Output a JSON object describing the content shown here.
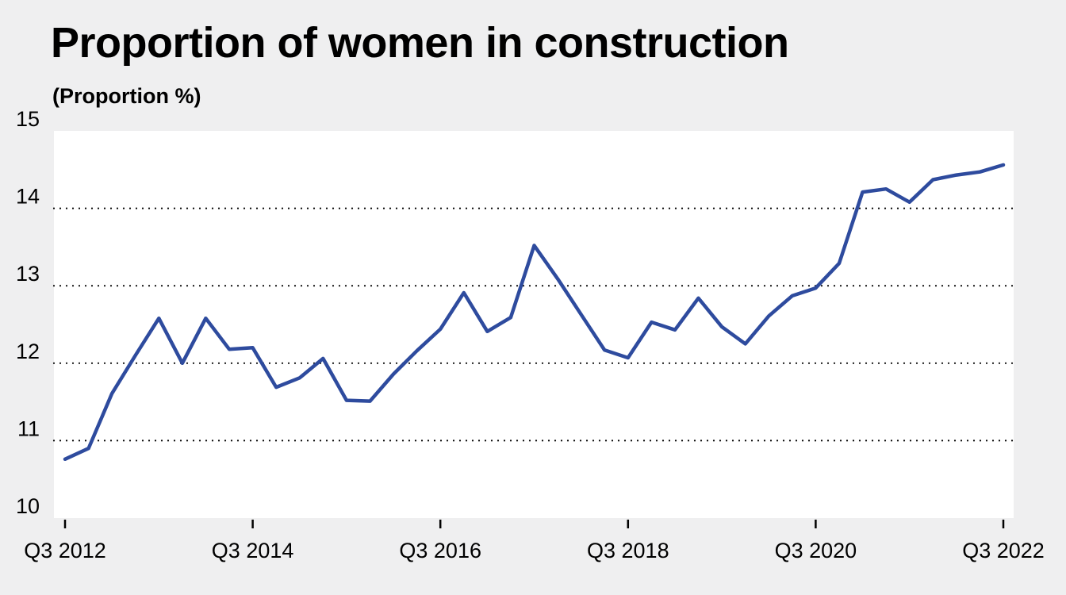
{
  "header": {
    "title": "Proportion of women in construction",
    "subtitle": "(Proportion %)"
  },
  "colors": {
    "background": "#efeff0",
    "plot_background": "#ffffff",
    "line": "#2e4b9e",
    "gridline": "#000000"
  },
  "chart_data": {
    "type": "line",
    "title": "Proportion of women in construction",
    "subtitle": "(Proportion %)",
    "xlabel": "",
    "ylabel": "Proportion %",
    "ylim": [
      10,
      15
    ],
    "yticks": [
      "10",
      "11",
      "12",
      "13",
      "14",
      "15"
    ],
    "xticks": [
      "Q3 2012",
      "Q3 2014",
      "Q3 2016",
      "Q3 2018",
      "Q3 2020",
      "Q3 2022"
    ],
    "grid": "horizontal dotted at 11, 12, 13, 14",
    "legend": "none",
    "x": [
      "Q3 2012",
      "Q4 2012",
      "Q1 2013",
      "Q2 2013",
      "Q3 2013",
      "Q4 2013",
      "Q1 2014",
      "Q2 2014",
      "Q3 2014",
      "Q4 2014",
      "Q1 2015",
      "Q2 2015",
      "Q3 2015",
      "Q4 2015",
      "Q1 2016",
      "Q2 2016",
      "Q3 2016",
      "Q4 2016",
      "Q1 2017",
      "Q2 2017",
      "Q3 2017",
      "Q4 2017",
      "Q1 2018",
      "Q2 2018",
      "Q3 2018",
      "Q4 2018",
      "Q1 2019",
      "Q2 2019",
      "Q3 2019",
      "Q4 2019",
      "Q1 2020",
      "Q2 2020",
      "Q3 2020",
      "Q4 2020",
      "Q1 2021",
      "Q2 2021",
      "Q3 2021",
      "Q4 2021",
      "Q1 2022",
      "Q2 2022",
      "Q3 2022"
    ],
    "series": [
      {
        "name": "Proportion of women in construction",
        "values": [
          10.76,
          10.9,
          11.61,
          12.1,
          12.58,
          12.0,
          12.58,
          12.18,
          12.2,
          11.69,
          11.81,
          12.06,
          11.52,
          11.51,
          11.86,
          12.16,
          12.44,
          12.91,
          12.41,
          12.59,
          13.52,
          13.09,
          12.63,
          12.17,
          12.07,
          12.53,
          12.43,
          12.84,
          12.47,
          12.25,
          12.61,
          12.87,
          12.97,
          13.29,
          14.21,
          14.25,
          14.08,
          14.37,
          14.43,
          14.47,
          14.56
        ]
      }
    ]
  }
}
